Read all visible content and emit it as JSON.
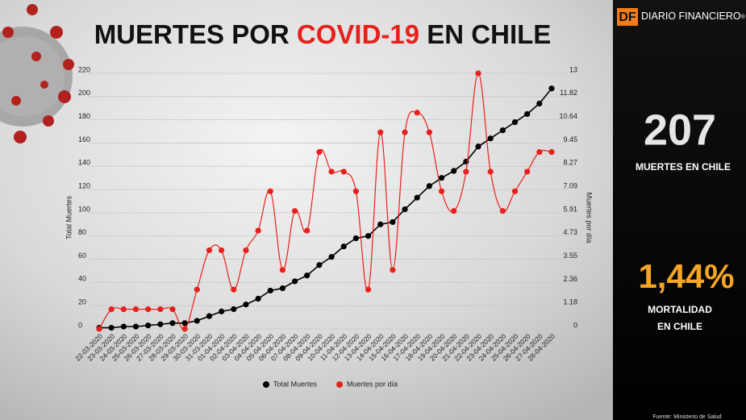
{
  "chart_data": {
    "type": "line",
    "title_parts": [
      "MUERTES POR",
      "COVID-19",
      "EN CHILE"
    ],
    "ylabel": "Total Muertes",
    "y2label": "Muertes por día",
    "categories": [
      "22-03-2020",
      "23-03-2020",
      "24-03-2020",
      "25-03-2020",
      "26-03-2020",
      "27-03-2020",
      "28-03-2020",
      "29-03-2020",
      "30-03-2020",
      "31-03-2020",
      "01-04-2020",
      "02-04-2020",
      "03-04-2020",
      "04-04-2020",
      "05-04-2020",
      "06-04-2020",
      "07-04-2020",
      "08-04-2020",
      "09-04-2020",
      "10-04-2020",
      "11-04-2020",
      "12-04-2020",
      "13-04-2020",
      "14-04-2020",
      "15-04-2020",
      "16-04-2020",
      "17-04-2020",
      "18-04-2020",
      "19-04-2020",
      "20-04-2020",
      "21-04-2020",
      "22-04-2020",
      "23-04-2020",
      "24-04-2020",
      "25-04-2020",
      "26-04-2020",
      "27-04-2020",
      "28-04-2020"
    ],
    "series": [
      {
        "name": "Total Muertes",
        "color": "#000000",
        "values": [
          1,
          1,
          2,
          2,
          3,
          4,
          5,
          5,
          7,
          11,
          15,
          17,
          21,
          26,
          33,
          35,
          41,
          46,
          55,
          62,
          71,
          78,
          80,
          90,
          92,
          103,
          113,
          123,
          130,
          136,
          144,
          157,
          164,
          171,
          178,
          185,
          194,
          207
        ]
      },
      {
        "name": "Muertes por día",
        "color": "#e8201c",
        "axis": "y2",
        "values": [
          0,
          1,
          1,
          1,
          1,
          1,
          1,
          0,
          2,
          4,
          4,
          2,
          4,
          5,
          7,
          3,
          6,
          5,
          9,
          8,
          8,
          7,
          2,
          10,
          3,
          10,
          11,
          10,
          7,
          6,
          8,
          13,
          8,
          6,
          7,
          8,
          9,
          9
        ]
      }
    ],
    "ylim": [
      0,
      220
    ],
    "yticks": [
      0,
      20,
      40,
      60,
      80,
      100,
      120,
      140,
      160,
      180,
      200,
      220
    ],
    "y2lim": [
      0,
      13
    ],
    "y2ticks": [
      0,
      1.18,
      2.36,
      3.55,
      4.73,
      5.91,
      7.09,
      8.27,
      9.45,
      10.64,
      11.82,
      13
    ],
    "grid": true,
    "legend": "bottom"
  },
  "sidebar": {
    "logo_mark": "DF",
    "logo_text": "DIARIO FINANCIERO",
    "logo_reg": "®",
    "deaths": "207",
    "deaths_label": "MUERTES EN CHILE",
    "mortality": "1,44%",
    "mortality_label": [
      "MORTALIDAD",
      "EN CHILE"
    ],
    "source": "Fuente: Ministerio de Salud"
  }
}
